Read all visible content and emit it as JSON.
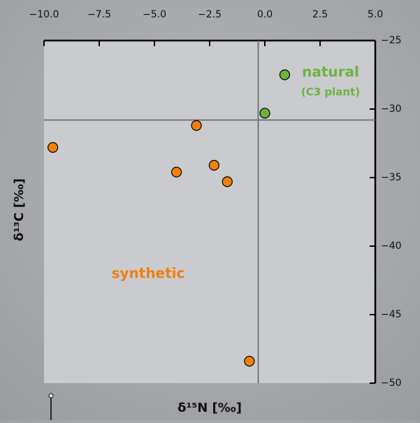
{
  "chart_data": {
    "type": "scatter",
    "x_label": "δ¹⁵N [‰]",
    "y_label": "δ¹³C [‰]",
    "xlim": [
      -10,
      5
    ],
    "ylim": [
      -50,
      -25
    ],
    "xticks": [
      {
        "value": -10,
        "label": "−10.0"
      },
      {
        "value": -7.5,
        "label": "−7.5"
      },
      {
        "value": -5,
        "label": "−5.0"
      },
      {
        "value": -2.5,
        "label": "−2.5"
      },
      {
        "value": 0,
        "label": "0.0"
      },
      2.5,
      {
        "value": 5,
        "label": "5.0"
      }
    ],
    "yticks": [
      {
        "value": -25,
        "label": "−25"
      },
      {
        "value": -30,
        "label": "−30"
      },
      {
        "value": -35,
        "label": "−35"
      },
      {
        "value": -40,
        "label": "−40"
      },
      {
        "value": -45,
        "label": "−45"
      },
      {
        "value": -50,
        "label": "−50"
      }
    ],
    "reference_lines": {
      "x": -0.3,
      "y": -30.8
    },
    "series": [
      {
        "name": "natural",
        "color": "#6db33f",
        "x": [
          0.9,
          0.0
        ],
        "values": [
          -27.5,
          -30.3
        ]
      },
      {
        "name": "synthetic",
        "color": "#f07f10",
        "x": [
          -9.6,
          -3.1,
          -4.0,
          -2.3,
          -1.7,
          -0.7
        ],
        "values": [
          -32.8,
          -31.2,
          -34.6,
          -34.1,
          -35.3,
          -48.4
        ]
      }
    ],
    "annotations": [
      "(C3 plant)"
    ]
  }
}
